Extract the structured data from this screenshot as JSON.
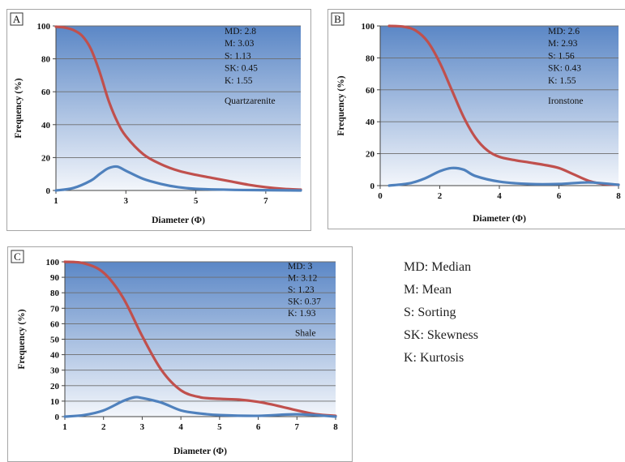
{
  "chart_data": [
    {
      "type": "line",
      "panel_label": "A",
      "xlabel": "Diameter (Φ)",
      "ylabel": "Frequency (%)",
      "xlim": [
        1,
        8
      ],
      "ylim": [
        0,
        100
      ],
      "xticks": [
        1,
        3,
        5,
        7
      ],
      "yticks": [
        0,
        20,
        40,
        60,
        80,
        100
      ],
      "grid": true,
      "legend": "none",
      "stats": [
        "MD: 2.8",
        "M: 3.03",
        "S: 1.13",
        "SK: 0.45",
        "K: 1.55"
      ],
      "rock_type": "Quartzarenite",
      "series": [
        {
          "color": "#c0504d",
          "x": [
            1,
            1.25,
            1.5,
            1.75,
            2,
            2.25,
            2.5,
            2.75,
            3,
            3.5,
            4,
            4.5,
            5,
            5.5,
            6,
            6.5,
            7,
            7.5,
            8
          ],
          "y": [
            99.5,
            99,
            97.5,
            94,
            86,
            72,
            55,
            42,
            33,
            22,
            16,
            12,
            9.5,
            7.5,
            5.5,
            3.5,
            2,
            1,
            0.5
          ]
        },
        {
          "color": "#4f81bd",
          "x": [
            1,
            1.5,
            2,
            2.25,
            2.5,
            2.75,
            3,
            3.5,
            4,
            4.5,
            5,
            6,
            7,
            8
          ],
          "y": [
            0,
            1.5,
            6,
            10,
            13.5,
            14.5,
            12,
            7,
            4,
            2,
            1,
            0.4,
            0.2,
            0
          ]
        }
      ]
    },
    {
      "type": "line",
      "panel_label": "B",
      "xlabel": "Diameter (Φ)",
      "ylabel": "Frequency (%)",
      "xlim": [
        0,
        8
      ],
      "ylim": [
        0,
        100
      ],
      "xticks": [
        0,
        2,
        4,
        6,
        8
      ],
      "yticks": [
        0,
        20,
        40,
        60,
        80,
        100
      ],
      "grid": true,
      "legend": "none",
      "stats": [
        "MD: 2.6",
        "M: 2.93",
        "S: 1.56",
        "SK: 0.43",
        "K: 1.55"
      ],
      "rock_type": "Ironstone",
      "series": [
        {
          "color": "#c0504d",
          "x": [
            0.3,
            0.8,
            1.2,
            1.6,
            2,
            2.4,
            2.8,
            3.2,
            3.6,
            4,
            4.5,
            5,
            5.5,
            6,
            6.5,
            7,
            7.5,
            8
          ],
          "y": [
            100,
            99.5,
            97,
            90,
            77,
            60,
            43,
            30,
            22,
            18,
            16,
            14.5,
            13,
            11,
            7,
            3,
            1,
            0.5
          ]
        },
        {
          "color": "#4f81bd",
          "x": [
            0.3,
            1,
            1.5,
            2,
            2.4,
            2.8,
            3.2,
            4,
            5,
            6,
            7,
            8
          ],
          "y": [
            0,
            1.5,
            4.5,
            9,
            11,
            10,
            6,
            2.5,
            1,
            1,
            2,
            0.5
          ]
        }
      ]
    },
    {
      "type": "line",
      "panel_label": "C",
      "xlabel": "Diameter (Φ)",
      "ylabel": "Frequency (%)",
      "xlim": [
        1,
        8
      ],
      "ylim": [
        0,
        100
      ],
      "xticks": [
        1,
        2,
        3,
        4,
        5,
        6,
        7,
        8
      ],
      "yticks": [
        0,
        10,
        20,
        30,
        40,
        50,
        60,
        70,
        80,
        90,
        100
      ],
      "grid": true,
      "legend": "none",
      "stats": [
        "MD: 3",
        "M: 3.12",
        "S: 1.23",
        "SK: 0.37",
        "K: 1.93"
      ],
      "rock_type": "Shale",
      "series": [
        {
          "color": "#c0504d",
          "x": [
            1,
            1.5,
            2,
            2.5,
            3,
            3.5,
            4,
            4.5,
            5,
            5.5,
            6,
            6.5,
            7,
            7.5,
            8
          ],
          "y": [
            100,
            99,
            93,
            77,
            52,
            30,
            17,
            12.5,
            11.5,
            11,
            9.5,
            7,
            4,
            1.5,
            0.5
          ]
        },
        {
          "color": "#4f81bd",
          "x": [
            1,
            1.5,
            2,
            2.5,
            2.8,
            3,
            3.5,
            4,
            4.5,
            5,
            6,
            7,
            8
          ],
          "y": [
            0,
            1,
            4,
            10,
            12.5,
            12,
            9,
            4,
            2,
            1,
            0.5,
            1.5,
            0
          ]
        }
      ]
    }
  ],
  "legend_definitions": [
    "MD: Median",
    "M: Mean",
    "S: Sorting",
    "SK: Skewness",
    "K: Kurtosis"
  ]
}
